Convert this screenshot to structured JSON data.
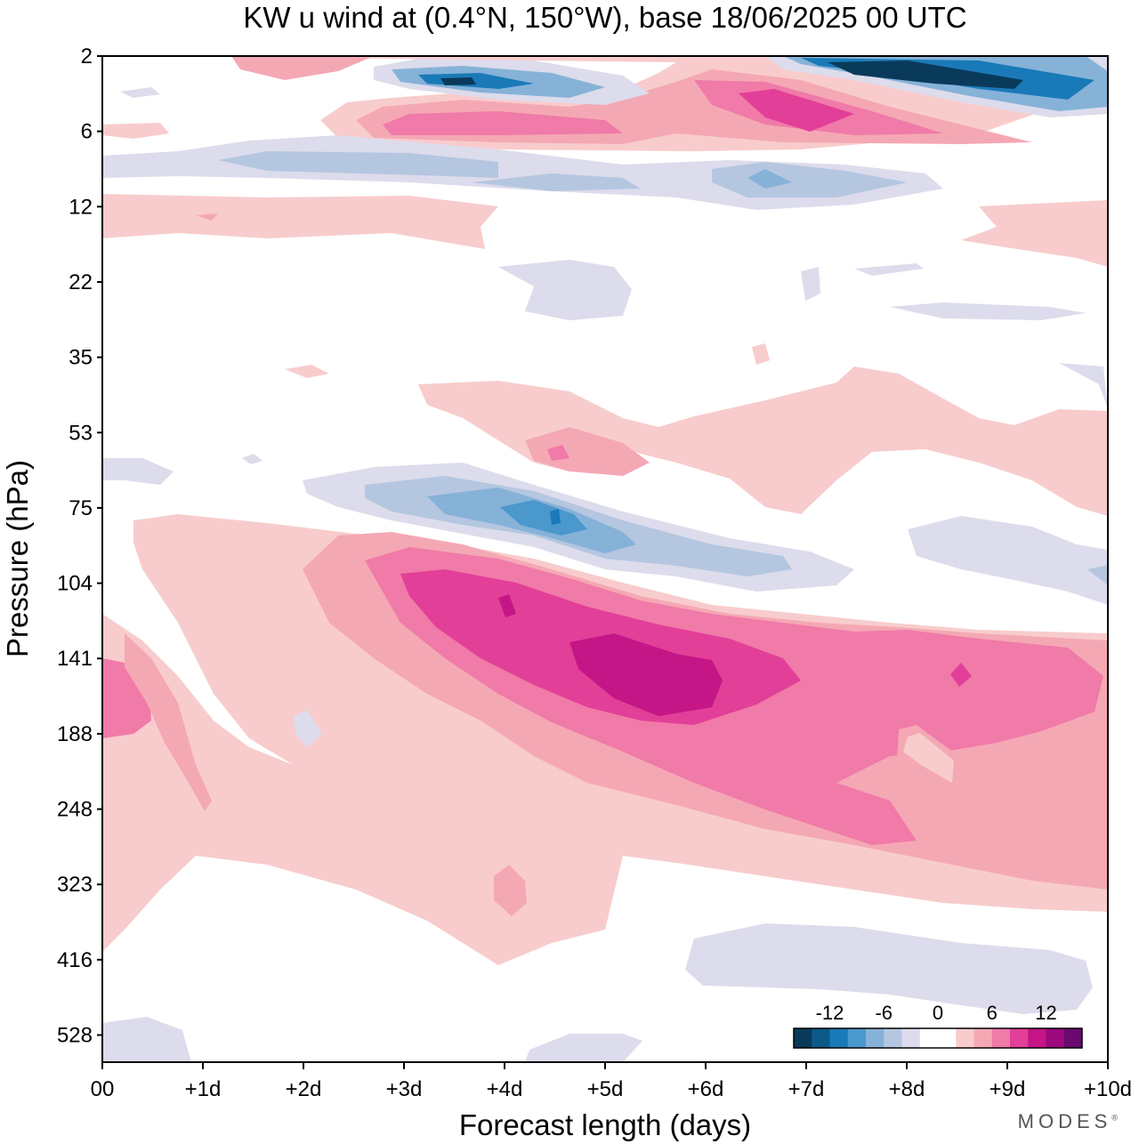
{
  "chart_data": {
    "type": "heatmap",
    "title": "KW u wind at (0.4°N, 150°W),  base 18/06/2025  00 UTC",
    "xlabel": "Forecast length (days)",
    "ylabel": "Pressure (hPa)",
    "x_ticks": [
      "00",
      "+1d",
      "+2d",
      "+3d",
      "+4d",
      "+5d",
      "+6d",
      "+7d",
      "+8d",
      "+9d",
      "+10d"
    ],
    "y_ticks": [
      "2",
      "6",
      "12",
      "22",
      "35",
      "53",
      "75",
      "104",
      "141",
      "188",
      "248",
      "323",
      "416",
      "528"
    ],
    "xlim": [
      0,
      10
    ],
    "colorbar": {
      "tick_labels": [
        "-12",
        "-6",
        "0",
        "6",
        "12"
      ],
      "colors": [
        "#0a3a5a",
        "#0c5a8a",
        "#1a7ab8",
        "#4a98cc",
        "#86b2d8",
        "#b5c6e0",
        "#dcdcec",
        "#ffffff",
        "#ffffff",
        "#f8cccc",
        "#f4a8b4",
        "#f07aa8",
        "#e23f98",
        "#c41686",
        "#9c0a7e",
        "#6a0a70"
      ]
    },
    "features": [
      {
        "sign": "negative",
        "peak_ms": -14,
        "day": 3.5,
        "pressure_hPa": 3
      },
      {
        "sign": "negative",
        "peak_ms": -14,
        "day": 8.2,
        "pressure_hPa": 3
      },
      {
        "sign": "positive",
        "peak_ms": 9,
        "day": 7.0,
        "pressure_hPa": 5
      },
      {
        "sign": "negative",
        "peak_ms": -5,
        "day": 2.5,
        "pressure_hPa": 8
      },
      {
        "sign": "negative",
        "peak_ms": -10,
        "day": 4.5,
        "pressure_hPa": 80
      },
      {
        "sign": "positive",
        "peak_ms": 15,
        "day": 5.5,
        "pressure_hPa": 141
      },
      {
        "sign": "positive",
        "peak_ms": 7,
        "day": 0.2,
        "pressure_hPa": 160
      },
      {
        "sign": "negative",
        "peak_ms": -3,
        "day": 9.0,
        "pressure_hPa": 90
      },
      {
        "sign": "negative",
        "peak_ms": -3,
        "day": 8.0,
        "pressure_hPa": 450
      }
    ]
  },
  "watermark": "MODES"
}
